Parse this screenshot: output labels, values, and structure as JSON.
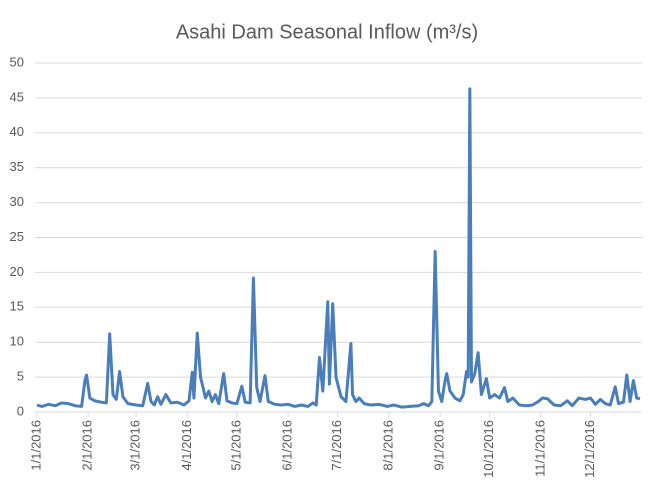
{
  "chart_data": {
    "type": "line",
    "title": "Asahi Dam Seasonal Inflow (m³/s)",
    "x": [
      "1/1/2016",
      "1/4/2016",
      "1/8/2016",
      "1/12/2016",
      "1/16/2016",
      "1/20/2016",
      "1/24/2016",
      "1/28/2016",
      "1/30/2016",
      "1/31/2016",
      "2/2/2016",
      "2/5/2016",
      "2/9/2016",
      "2/12/2016",
      "2/14/2016",
      "2/16/2016",
      "2/18/2016",
      "2/20/2016",
      "2/22/2016",
      "2/25/2016",
      "3/1/2016",
      "3/5/2016",
      "3/8/2016",
      "3/10/2016",
      "3/12/2016",
      "3/14/2016",
      "3/16/2016",
      "3/19/2016",
      "3/22/2016",
      "3/26/2016",
      "3/30/2016",
      "4/2/2016",
      "4/4/2016",
      "4/5/2016",
      "4/7/2016",
      "4/9/2016",
      "4/12/2016",
      "4/14/2016",
      "4/16/2016",
      "4/18/2016",
      "4/20/2016",
      "4/23/2016",
      "4/25/2016",
      "4/28/2016",
      "5/1/2016",
      "5/4/2016",
      "5/6/2016",
      "5/9/2016",
      "5/11/2016",
      "5/13/2016",
      "5/15/2016",
      "5/18/2016",
      "5/20/2016",
      "5/24/2016",
      "5/28/2016",
      "6/1/2016",
      "6/5/2016",
      "6/9/2016",
      "6/13/2016",
      "6/16/2016",
      "6/18/2016",
      "6/20/2016",
      "6/22/2016",
      "6/25/2016",
      "6/26/2016",
      "6/28/2016",
      "6/30/2016",
      "7/3/2016",
      "7/6/2016",
      "7/9/2016",
      "7/10/2016",
      "7/12/2016",
      "7/14/2016",
      "7/17/2016",
      "7/21/2016",
      "7/26/2016",
      "7/31/2016",
      "8/4/2016",
      "8/9/2016",
      "8/14/2016",
      "8/19/2016",
      "8/22/2016",
      "8/25/2016",
      "8/27/2016",
      "8/29/2016",
      "8/31/2016",
      "9/2/2016",
      "9/4/2016",
      "9/5/2016",
      "9/7/2016",
      "9/10/2016",
      "9/13/2016",
      "9/15/2016",
      "9/17/2016",
      "9/18/2016",
      "9/19/2016",
      "9/20/2016",
      "9/22/2016",
      "9/24/2016",
      "9/26/2016",
      "9/29/2016",
      "10/1/2016",
      "10/4/2016",
      "10/7/2016",
      "10/10/2016",
      "10/12/2016",
      "10/15/2016",
      "10/19/2016",
      "10/23/2016",
      "10/27/2016",
      "10/31/2016",
      "11/2/2016",
      "11/5/2016",
      "11/9/2016",
      "11/13/2016",
      "11/17/2016",
      "11/20/2016",
      "11/24/2016",
      "11/28/2016",
      "12/1/2016",
      "12/4/2016",
      "12/7/2016",
      "12/10/2016",
      "12/13/2016",
      "12/16/2016",
      "12/18/2016",
      "12/21/2016",
      "12/23/2016",
      "12/25/2016",
      "12/27/2016",
      "12/29/2016",
      "12/31/2016"
    ],
    "values": [
      1.0,
      0.8,
      1.1,
      0.9,
      1.3,
      1.2,
      0.9,
      0.8,
      4.5,
      5.3,
      2.0,
      1.6,
      1.4,
      1.3,
      11.2,
      2.5,
      1.8,
      5.8,
      2.2,
      1.2,
      1.0,
      0.9,
      4.1,
      1.5,
      1.0,
      2.2,
      1.1,
      2.5,
      1.3,
      1.4,
      1.0,
      1.6,
      5.7,
      2.0,
      11.3,
      5.0,
      2.0,
      3.0,
      1.5,
      2.5,
      1.2,
      5.5,
      1.6,
      1.3,
      1.2,
      3.7,
      1.4,
      1.3,
      19.2,
      3.5,
      1.5,
      5.2,
      1.5,
      1.1,
      1.0,
      1.1,
      0.8,
      1.0,
      0.8,
      1.3,
      1.0,
      7.8,
      3.0,
      15.8,
      4.0,
      15.5,
      5.0,
      2.2,
      1.5,
      9.8,
      2.5,
      1.5,
      2.0,
      1.2,
      1.0,
      1.1,
      0.8,
      1.0,
      0.7,
      0.8,
      0.9,
      1.2,
      0.9,
      1.5,
      23.0,
      3.0,
      1.5,
      4.5,
      5.5,
      3.0,
      2.0,
      1.6,
      2.5,
      5.8,
      5.0,
      46.3,
      4.3,
      5.5,
      8.5,
      2.5,
      4.8,
      2.0,
      2.5,
      2.0,
      3.5,
      1.5,
      2.0,
      1.0,
      0.9,
      1.0,
      1.6,
      2.0,
      1.9,
      1.0,
      0.9,
      1.6,
      0.9,
      2.0,
      1.8,
      2.0,
      1.1,
      1.8,
      1.2,
      1.0,
      3.6,
      1.2,
      1.4,
      5.3,
      1.5,
      4.5,
      2.0,
      1.9
    ],
    "color": "#4a7ebb",
    "xlim": [
      "1/1/2016",
      "12/31/2016"
    ],
    "xticks": [
      "1/1/2016",
      "2/1/2016",
      "3/1/2016",
      "4/1/2016",
      "5/1/2016",
      "6/1/2016",
      "7/1/2016",
      "8/1/2016",
      "9/1/2016",
      "10/1/2016",
      "11/1/2016",
      "12/1/2016"
    ],
    "ylim": [
      0,
      50
    ],
    "yticks": [
      0,
      5,
      10,
      15,
      20,
      25,
      30,
      35,
      40,
      45,
      50
    ],
    "grid": true
  }
}
